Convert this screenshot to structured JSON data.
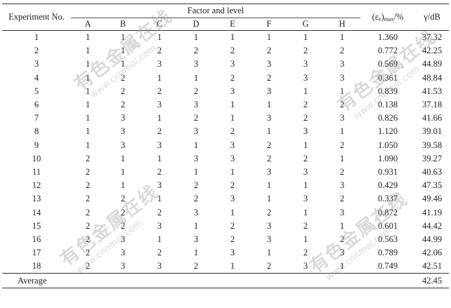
{
  "table": {
    "header": {
      "experiment_no": "Experiment No.",
      "factor_and_level": "Factor and level",
      "factors": [
        "A",
        "B",
        "C",
        "D",
        "E",
        "F",
        "G",
        "H"
      ],
      "eps_col_main": "(ε",
      "eps_col_sub": "e",
      "eps_col_close": ")",
      "eps_col_sub2": "max",
      "eps_col_unit": "/%",
      "gamma_col": "γ/dB"
    },
    "rows": [
      {
        "no": "1",
        "levels": [
          "1",
          "1",
          "1",
          "1",
          "1",
          "1",
          "1",
          "1"
        ],
        "eps": "1.360",
        "gamma": "37.32"
      },
      {
        "no": "2",
        "levels": [
          "1",
          "1",
          "2",
          "2",
          "2",
          "2",
          "2",
          "2"
        ],
        "eps": "0.772",
        "gamma": "42.25"
      },
      {
        "no": "3",
        "levels": [
          "1",
          "1",
          "3",
          "3",
          "3",
          "3",
          "3",
          "3"
        ],
        "eps": "0.569",
        "gamma": "44.89"
      },
      {
        "no": "4",
        "levels": [
          "1",
          "2",
          "1",
          "1",
          "2",
          "2",
          "3",
          "3"
        ],
        "eps": "0.361",
        "gamma": "48.84"
      },
      {
        "no": "5",
        "levels": [
          "1",
          "2",
          "2",
          "2",
          "3",
          "3",
          "1",
          "1"
        ],
        "eps": "0.839",
        "gamma": "41.53"
      },
      {
        "no": "6",
        "levels": [
          "1",
          "2",
          "3",
          "3",
          "1",
          "1",
          "2",
          "2"
        ],
        "eps": "0.138",
        "gamma": "37.18"
      },
      {
        "no": "7",
        "levels": [
          "1",
          "3",
          "1",
          "2",
          "1",
          "3",
          "2",
          "3"
        ],
        "eps": "0.826",
        "gamma": "41.66"
      },
      {
        "no": "8",
        "levels": [
          "1",
          "3",
          "2",
          "3",
          "2",
          "1",
          "3",
          "1"
        ],
        "eps": "1.120",
        "gamma": "39.01"
      },
      {
        "no": "9",
        "levels": [
          "1",
          "3",
          "3",
          "1",
          "3",
          "2",
          "1",
          "2"
        ],
        "eps": "1.050",
        "gamma": "39.58"
      },
      {
        "no": "10",
        "levels": [
          "2",
          "1",
          "1",
          "3",
          "3",
          "2",
          "2",
          "1"
        ],
        "eps": "1.090",
        "gamma": "39.27"
      },
      {
        "no": "11",
        "levels": [
          "2",
          "1",
          "2",
          "1",
          "1",
          "3",
          "3",
          "2"
        ],
        "eps": "0.931",
        "gamma": "40.63"
      },
      {
        "no": "12",
        "levels": [
          "2",
          "1",
          "3",
          "2",
          "2",
          "1",
          "1",
          "3"
        ],
        "eps": "0.429",
        "gamma": "47.35"
      },
      {
        "no": "13",
        "levels": [
          "2",
          "2",
          "1",
          "2",
          "3",
          "1",
          "3",
          "2"
        ],
        "eps": "0.337",
        "gamma": "49.46"
      },
      {
        "no": "14",
        "levels": [
          "2",
          "2",
          "2",
          "3",
          "1",
          "2",
          "1",
          "3"
        ],
        "eps": "0.872",
        "gamma": "41.19"
      },
      {
        "no": "15",
        "levels": [
          "2",
          "2",
          "3",
          "1",
          "2",
          "3",
          "2",
          "1"
        ],
        "eps": "0.601",
        "gamma": "44.42"
      },
      {
        "no": "16",
        "levels": [
          "2",
          "3",
          "1",
          "3",
          "2",
          "3",
          "1",
          "2"
        ],
        "eps": "0.563",
        "gamma": "44.99"
      },
      {
        "no": "17",
        "levels": [
          "2",
          "3",
          "2",
          "1",
          "3",
          "1",
          "2",
          "3"
        ],
        "eps": "0.789",
        "gamma": "42.06"
      },
      {
        "no": "18",
        "levels": [
          "2",
          "3",
          "3",
          "2",
          "1",
          "2",
          "3",
          "1"
        ],
        "eps": "0.749",
        "gamma": "42.51"
      }
    ],
    "average": {
      "label": "Average",
      "gamma": "42.45"
    }
  },
  "watermark": {
    "cn": "有色金属在线",
    "en": "www.cnnmol.com",
    "color": "#969696"
  }
}
